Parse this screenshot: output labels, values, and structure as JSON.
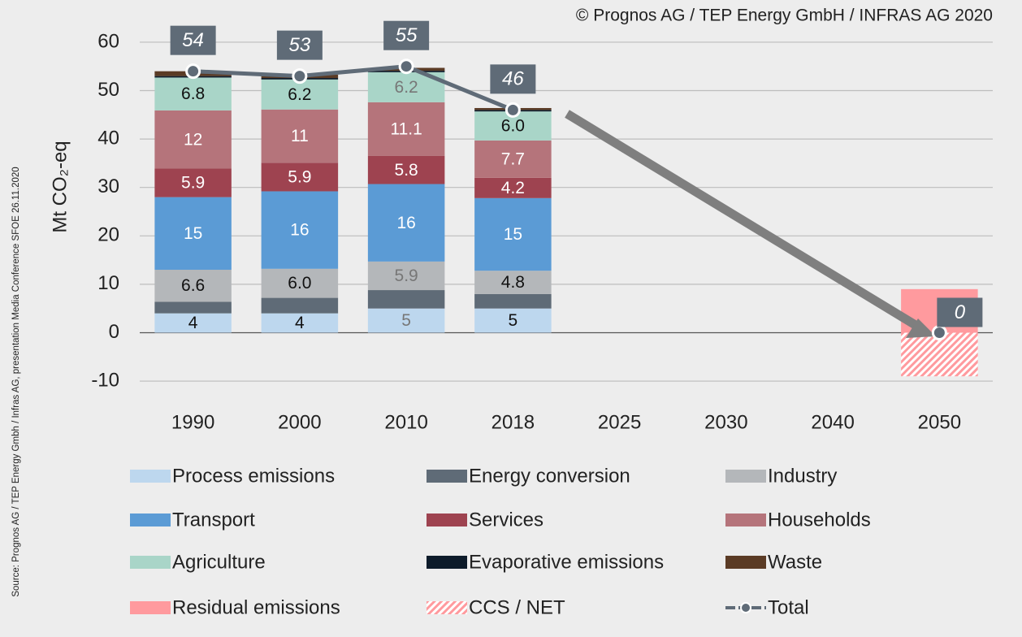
{
  "chart_data": {
    "type": "bar",
    "stacked": true,
    "source": "Source: Prognos AG / TEP Energy Gmbh / Infras AG, presentation Media Conference SFOE 26.11.2020",
    "copyright": "© Prognos AG / TEP Energy GmbH / INFRAS AG 2020",
    "y_label": "Mt CO₂-eq",
    "categories": [
      "1990",
      "2000",
      "2010",
      "2018",
      "2025",
      "2030",
      "2040",
      "2050"
    ],
    "ylim": [
      -12,
      62
    ],
    "yticks": [
      -10,
      0,
      10,
      20,
      30,
      40,
      50,
      60
    ],
    "grid": true,
    "series": [
      {
        "name": "Process emissions",
        "color": "#bdd7ee",
        "values": [
          4,
          4,
          5,
          5,
          null,
          null,
          null,
          null
        ]
      },
      {
        "name": "Energy conversion",
        "color": "#5f6b77",
        "values": [
          2.4,
          3.2,
          3.8,
          3.0,
          null,
          null,
          null,
          null
        ]
      },
      {
        "name": "Industry",
        "color": "#b4b7ba",
        "values": [
          6.6,
          6,
          5.9,
          4.8,
          null,
          null,
          null,
          null
        ],
        "value_labels": [
          "6.6",
          "6.0",
          "5.9",
          "4.8",
          null,
          null,
          null,
          null
        ]
      },
      {
        "name": "Transport",
        "color": "#5b9bd5",
        "values": [
          15,
          16,
          16,
          15,
          null,
          null,
          null,
          null
        ]
      },
      {
        "name": "Services",
        "color": "#9e4350",
        "values": [
          5.9,
          5.9,
          5.8,
          4.2,
          null,
          null,
          null,
          null
        ]
      },
      {
        "name": "Households",
        "color": "#b5747b",
        "values": [
          12,
          11,
          11.1,
          7.7,
          null,
          null,
          null,
          null
        ]
      },
      {
        "name": "Agriculture",
        "color": "#a9d5c8",
        "values": [
          6.8,
          6.2,
          6.2,
          6,
          null,
          null,
          null,
          null
        ],
        "value_labels": [
          "6.8",
          "6.2",
          "6.2",
          "6.0",
          null,
          null,
          null,
          null
        ]
      },
      {
        "name": "Evaporative emissions",
        "color": "#0d1b2a",
        "values": [
          0.3,
          0.3,
          0.3,
          0.3,
          null,
          null,
          null,
          null
        ]
      },
      {
        "name": "Waste",
        "color": "#5b3b25",
        "values": [
          1,
          0.7,
          0.6,
          0.4,
          null,
          null,
          null,
          null
        ]
      },
      {
        "name": "Residual emissions",
        "color": "#ff9a9e",
        "values": [
          null,
          null,
          null,
          null,
          null,
          null,
          null,
          9
        ]
      },
      {
        "name": "CCS / NET",
        "color": "#ff9a9e",
        "pattern": "hatch",
        "values": [
          null,
          null,
          null,
          null,
          null,
          null,
          null,
          -9
        ]
      },
      {
        "name": "Total",
        "type": "line",
        "color": "#5f6b77",
        "values": [
          54,
          53,
          55,
          46,
          null,
          null,
          null,
          0
        ]
      }
    ]
  }
}
